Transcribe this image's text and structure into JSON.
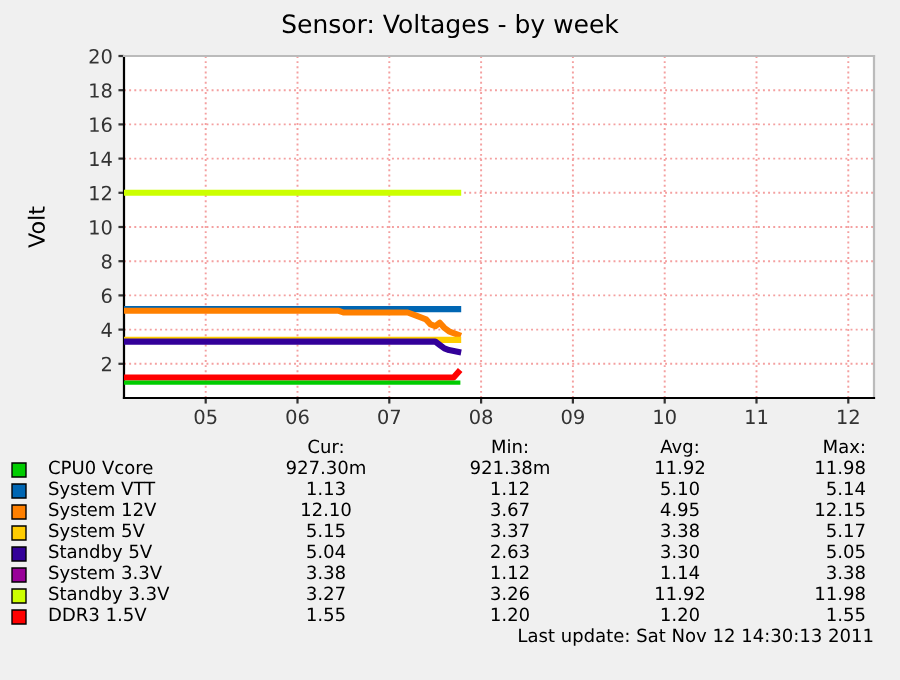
{
  "chart_data": {
    "type": "line",
    "title": "Sensor: Voltages - by week",
    "ylabel": "Volt",
    "xlim": [
      4.11,
      12.28
    ],
    "xticks": [
      {
        "value": 5,
        "label": "05"
      },
      {
        "value": 6,
        "label": "06"
      },
      {
        "value": 7,
        "label": "07"
      },
      {
        "value": 8,
        "label": "08"
      },
      {
        "value": 9,
        "label": "09"
      },
      {
        "value": 10,
        "label": "10"
      },
      {
        "value": 11,
        "label": "11"
      },
      {
        "value": 12,
        "label": "12"
      }
    ],
    "ylim": [
      0,
      20
    ],
    "yticks": [
      2,
      4,
      6,
      8,
      10,
      12,
      14,
      16,
      18,
      20
    ],
    "grid": true,
    "legend": "bottom",
    "line_style": "solid",
    "marker": "none",
    "series": [
      {
        "name": "CPU0 Vcore",
        "color": "#00cc00",
        "x": [
          4.11,
          7.7,
          7.75
        ],
        "values": [
          0.9,
          0.9,
          0.9
        ]
      },
      {
        "name": "System VTT",
        "color": "#0066b3",
        "x": [
          4.11,
          7.75
        ],
        "values": [
          5.2,
          5.2
        ]
      },
      {
        "name": "System 12V",
        "color": "#ff8000",
        "x": [
          4.11,
          6.45,
          6.5,
          7.2,
          7.3,
          7.4,
          7.45,
          7.5,
          7.55,
          7.6,
          7.65,
          7.7,
          7.75
        ],
        "values": [
          5.1,
          5.1,
          5.0,
          5.0,
          4.8,
          4.6,
          4.3,
          4.2,
          4.4,
          4.1,
          3.9,
          3.8,
          3.7
        ]
      },
      {
        "name": "System 5V",
        "color": "#ffcc00",
        "x": [
          4.11,
          7.75
        ],
        "values": [
          3.4,
          3.4
        ]
      },
      {
        "name": "Standby 5V",
        "color": "#330099",
        "x": [
          4.11,
          7.5,
          7.55,
          7.6,
          7.65,
          7.75
        ],
        "values": [
          3.3,
          3.3,
          3.1,
          2.9,
          2.8,
          2.7
        ]
      },
      {
        "name": "System 3.3V",
        "color": "#990099"
      },
      {
        "name": "Standby 3.3V",
        "color": "#ccff00",
        "x": [
          4.11,
          7.75
        ],
        "values": [
          12.0,
          12.0
        ]
      },
      {
        "name": "DDR3 1.5V",
        "color": "#ff0000",
        "x": [
          4.11,
          7.7,
          7.75
        ],
        "values": [
          1.2,
          1.2,
          1.5
        ]
      }
    ],
    "annotations": [
      "Cur:",
      "Min:",
      "Avg:",
      "Max:",
      "927.30m",
      "921.38m",
      "11.92",
      "11.98",
      "1.13",
      "1.12",
      "5.10",
      "5.14",
      "12.10",
      "3.67",
      "4.95",
      "12.15",
      "5.15",
      "3.37",
      "3.38",
      "5.17",
      "5.04",
      "2.63",
      "3.30",
      "5.05",
      "3.38",
      "1.12",
      "1.14",
      "3.38",
      "3.27",
      "3.26",
      "11.92",
      "11.98",
      "1.55",
      "1.20",
      "1.20",
      "1.55",
      "Last update: Sat Nov 12 14:30:13 2011"
    ]
  }
}
